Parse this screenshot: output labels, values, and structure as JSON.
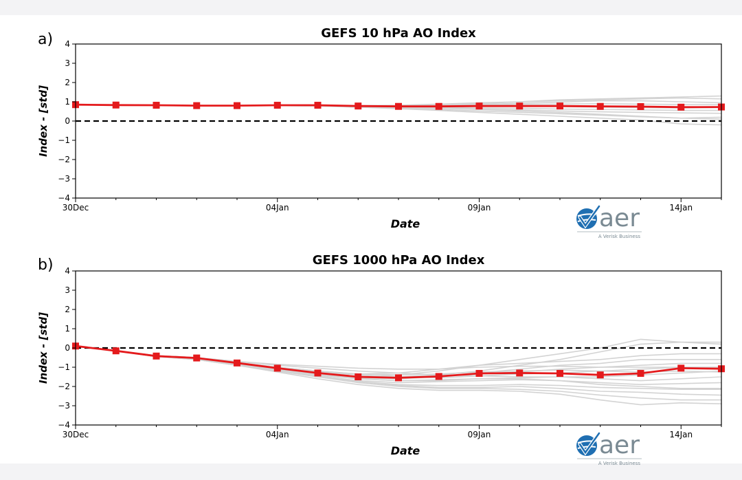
{
  "colors": {
    "mean": "#e41a1c",
    "members": "#d3d3d3",
    "zero_line": "#000000",
    "logo": "#1f6fb2"
  },
  "logo": {
    "name": "aer",
    "tagline": "A Verisk Business",
    "icon": "aer-check-globe-icon"
  },
  "chart_data": [
    {
      "panel": "a)",
      "type": "line",
      "title": "GEFS 10 hPa AO Index",
      "xlabel": "Date",
      "ylabel": "Index - [std]",
      "x_ticks": [
        "30Dec",
        "04Jan",
        "09Jan",
        "14Jan"
      ],
      "y_ticks": [
        "4",
        "3",
        "2",
        "1",
        "0",
        "−1",
        "−2",
        "−3",
        "−4"
      ],
      "ylim": [
        -4,
        4
      ],
      "xlim": [
        "2023-12-30",
        "2024-01-15"
      ],
      "zero_line": true,
      "grid": false,
      "x": [
        "2023-12-30",
        "2023-12-31",
        "2024-01-01",
        "2024-01-02",
        "2024-01-03",
        "2024-01-04",
        "2024-01-05",
        "2024-01-06",
        "2024-01-07",
        "2024-01-08",
        "2024-01-09",
        "2024-01-10",
        "2024-01-11",
        "2024-01-12",
        "2024-01-13",
        "2024-01-14",
        "2024-01-15"
      ],
      "series": [
        {
          "role": "ensemble-mean",
          "values": [
            0.85,
            0.83,
            0.82,
            0.8,
            0.8,
            0.82,
            0.82,
            0.78,
            0.76,
            0.76,
            0.78,
            0.78,
            0.78,
            0.76,
            0.75,
            0.72,
            0.73
          ]
        }
      ],
      "members": [
        [
          0.85,
          0.83,
          0.82,
          0.8,
          0.8,
          0.82,
          0.82,
          0.8,
          0.8,
          0.82,
          0.9,
          1.0,
          1.1,
          1.15,
          1.2,
          1.25,
          1.3
        ],
        [
          0.85,
          0.83,
          0.82,
          0.8,
          0.8,
          0.82,
          0.82,
          0.8,
          0.82,
          0.88,
          0.95,
          1.0,
          1.05,
          1.1,
          1.15,
          1.2,
          1.15
        ],
        [
          0.85,
          0.83,
          0.82,
          0.8,
          0.8,
          0.82,
          0.82,
          0.78,
          0.76,
          0.8,
          0.86,
          0.92,
          0.98,
          1.05,
          1.05,
          1.0,
          0.95
        ],
        [
          0.85,
          0.83,
          0.82,
          0.8,
          0.8,
          0.82,
          0.82,
          0.78,
          0.75,
          0.78,
          0.82,
          0.86,
          0.88,
          0.9,
          0.88,
          0.86,
          0.85
        ],
        [
          0.85,
          0.83,
          0.82,
          0.8,
          0.8,
          0.82,
          0.82,
          0.78,
          0.74,
          0.74,
          0.76,
          0.78,
          0.75,
          0.72,
          0.7,
          0.68,
          0.7
        ],
        [
          0.85,
          0.83,
          0.82,
          0.8,
          0.8,
          0.82,
          0.8,
          0.76,
          0.72,
          0.7,
          0.68,
          0.66,
          0.62,
          0.6,
          0.58,
          0.55,
          0.55
        ],
        [
          0.85,
          0.83,
          0.82,
          0.8,
          0.8,
          0.81,
          0.8,
          0.75,
          0.7,
          0.66,
          0.62,
          0.58,
          0.52,
          0.48,
          0.45,
          0.42,
          0.4
        ],
        [
          0.85,
          0.83,
          0.82,
          0.8,
          0.8,
          0.81,
          0.78,
          0.72,
          0.66,
          0.6,
          0.52,
          0.45,
          0.38,
          0.3,
          0.22,
          0.15,
          0.1
        ],
        [
          0.85,
          0.83,
          0.82,
          0.8,
          0.8,
          0.8,
          0.78,
          0.72,
          0.64,
          0.55,
          0.45,
          0.35,
          0.25,
          0.15,
          0.05,
          -0.15,
          -0.2
        ],
        [
          0.85,
          0.83,
          0.82,
          0.8,
          0.8,
          0.8,
          0.78,
          0.74,
          0.7,
          0.66,
          0.6,
          0.52,
          0.44,
          0.35,
          0.25,
          0.15,
          0.2
        ]
      ]
    },
    {
      "panel": "b)",
      "type": "line",
      "title": "GEFS 1000 hPa AO Index",
      "xlabel": "Date",
      "ylabel": "Index - [std]",
      "x_ticks": [
        "30Dec",
        "04Jan",
        "09Jan",
        "14Jan"
      ],
      "y_ticks": [
        "4",
        "3",
        "2",
        "1",
        "0",
        "−1",
        "−2",
        "−3",
        "−4"
      ],
      "ylim": [
        -4,
        4
      ],
      "xlim": [
        "2023-12-30",
        "2024-01-15"
      ],
      "zero_line": true,
      "grid": false,
      "x": [
        "2023-12-30",
        "2023-12-31",
        "2024-01-01",
        "2024-01-02",
        "2024-01-03",
        "2024-01-04",
        "2024-01-05",
        "2024-01-06",
        "2024-01-07",
        "2024-01-08",
        "2024-01-09",
        "2024-01-10",
        "2024-01-11",
        "2024-01-12",
        "2024-01-13",
        "2024-01-14",
        "2024-01-15"
      ],
      "series": [
        {
          "role": "ensemble-mean",
          "values": [
            0.1,
            -0.15,
            -0.42,
            -0.52,
            -0.78,
            -1.05,
            -1.3,
            -1.5,
            -1.55,
            -1.48,
            -1.32,
            -1.3,
            -1.32,
            -1.4,
            -1.32,
            -1.05,
            -1.08
          ]
        }
      ],
      "members": [
        [
          0.1,
          -0.15,
          -0.45,
          -0.55,
          -0.8,
          -1.05,
          -1.25,
          -1.4,
          -1.5,
          -1.4,
          -1.2,
          -0.9,
          -0.6,
          -0.2,
          0.2,
          0.3,
          0.3
        ],
        [
          0.1,
          -0.15,
          -0.42,
          -0.55,
          -0.78,
          -1.05,
          -1.3,
          -1.5,
          -1.4,
          -1.2,
          -0.9,
          -0.6,
          -0.3,
          0.0,
          0.45,
          0.3,
          0.2
        ],
        [
          0.1,
          -0.15,
          -0.4,
          -0.5,
          -0.75,
          -1.0,
          -1.2,
          -1.35,
          -1.3,
          -1.1,
          -0.9,
          -0.8,
          -0.7,
          -0.6,
          -0.4,
          -0.3,
          -0.3
        ],
        [
          0.1,
          -0.15,
          -0.42,
          -0.52,
          -0.78,
          -1.1,
          -1.35,
          -1.55,
          -1.6,
          -1.5,
          -1.3,
          -1.1,
          -0.9,
          -0.8,
          -0.6,
          -0.6,
          -0.6
        ],
        [
          0.1,
          -0.15,
          -0.45,
          -0.55,
          -0.8,
          -1.05,
          -1.3,
          -1.5,
          -1.55,
          -1.45,
          -1.35,
          -1.25,
          -1.1,
          -1.0,
          -0.9,
          -0.8,
          -0.8
        ],
        [
          0.1,
          -0.15,
          -0.42,
          -0.52,
          -0.78,
          -1.0,
          -1.2,
          -1.4,
          -1.5,
          -1.55,
          -1.45,
          -1.35,
          -1.3,
          -1.2,
          -1.1,
          -1.0,
          -1.0
        ],
        [
          0.1,
          -0.15,
          -0.4,
          -0.5,
          -0.7,
          -0.9,
          -1.05,
          -1.2,
          -1.3,
          -1.4,
          -1.45,
          -1.5,
          -1.5,
          -1.5,
          -1.4,
          -1.3,
          -1.2
        ],
        [
          0.1,
          -0.15,
          -0.42,
          -0.55,
          -0.8,
          -1.1,
          -1.4,
          -1.6,
          -1.7,
          -1.7,
          -1.6,
          -1.55,
          -1.5,
          -1.6,
          -1.7,
          -1.6,
          -1.5
        ],
        [
          0.1,
          -0.15,
          -0.42,
          -0.55,
          -0.85,
          -1.15,
          -1.45,
          -1.7,
          -1.8,
          -1.75,
          -1.7,
          -1.65,
          -1.7,
          -1.8,
          -1.9,
          -1.85,
          -1.8
        ],
        [
          0.1,
          -0.15,
          -0.45,
          -0.6,
          -0.9,
          -1.2,
          -1.5,
          -1.75,
          -1.9,
          -1.95,
          -1.95,
          -1.9,
          -1.95,
          -2.05,
          -2.1,
          -2.15,
          -2.15
        ],
        [
          0.1,
          -0.15,
          -0.45,
          -0.6,
          -0.9,
          -1.2,
          -1.5,
          -1.75,
          -1.95,
          -2.05,
          -2.05,
          -2.0,
          -2.1,
          -2.25,
          -2.3,
          -2.4,
          -2.45
        ],
        [
          0.1,
          -0.15,
          -0.42,
          -0.58,
          -0.88,
          -1.18,
          -1.5,
          -1.8,
          -2.0,
          -2.1,
          -2.1,
          -2.15,
          -2.25,
          -2.45,
          -2.6,
          -2.7,
          -2.7
        ],
        [
          0.1,
          -0.15,
          -0.45,
          -0.6,
          -0.9,
          -1.25,
          -1.6,
          -1.9,
          -2.1,
          -2.2,
          -2.2,
          -2.25,
          -2.4,
          -2.7,
          -2.95,
          -2.85,
          -2.9
        ],
        [
          0.1,
          -0.15,
          -0.42,
          -0.55,
          -0.82,
          -1.1,
          -1.4,
          -1.6,
          -1.7,
          -1.65,
          -1.6,
          -1.6,
          -1.7,
          -1.9,
          -2.0,
          -2.1,
          -2.1
        ],
        [
          0.1,
          -0.15,
          -0.4,
          -0.5,
          -0.7,
          -0.85,
          -0.95,
          -1.05,
          -1.1,
          -1.1,
          -1.0,
          -0.95,
          -0.95,
          -1.0,
          -1.0,
          -1.0,
          -1.0
        ],
        [
          0.1,
          -0.15,
          -0.42,
          -0.52,
          -0.75,
          -1.0,
          -1.2,
          -1.35,
          -1.4,
          -1.35,
          -1.25,
          -1.2,
          -1.15,
          -1.2,
          -1.25,
          -1.2,
          -1.25
        ]
      ]
    }
  ]
}
